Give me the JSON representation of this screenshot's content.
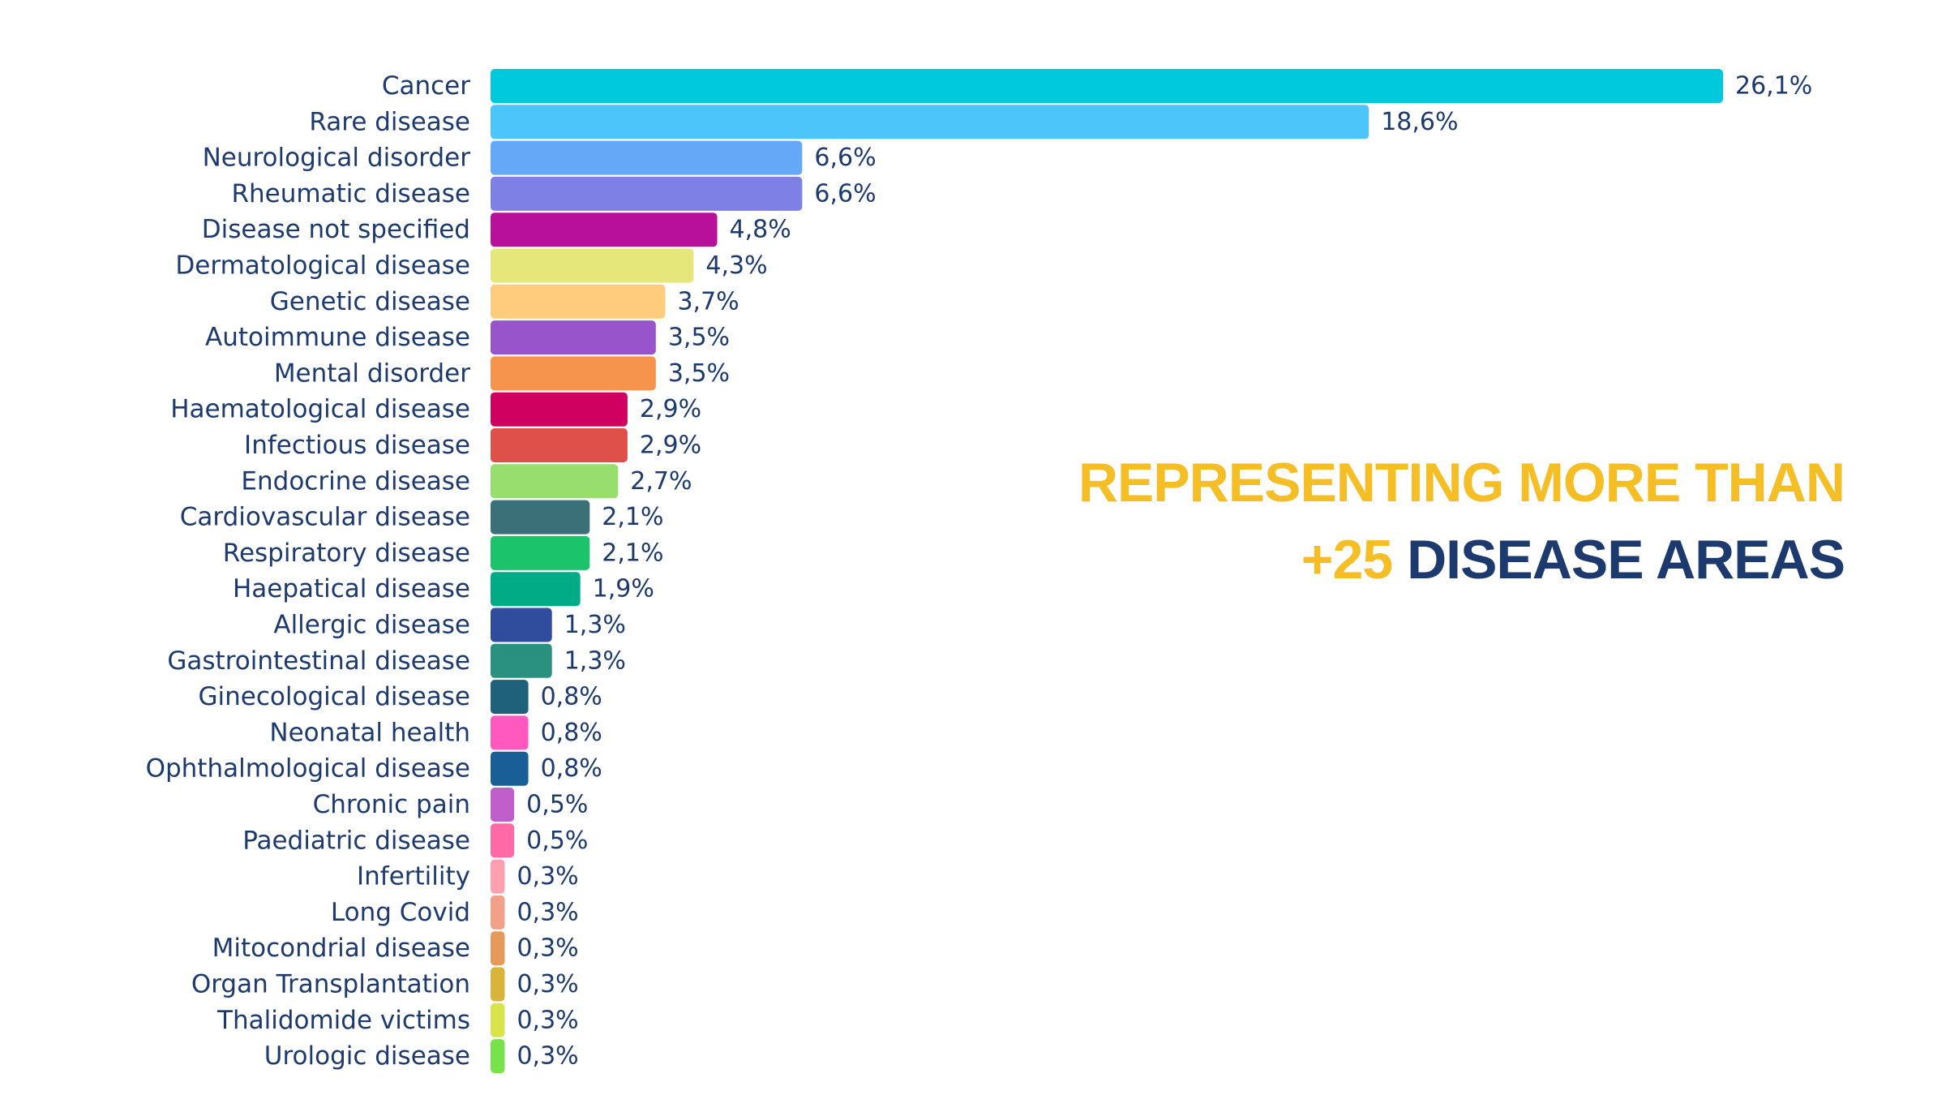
{
  "chart_data": {
    "type": "bar",
    "orientation": "horizontal",
    "categories": [
      "Cancer",
      "Rare disease",
      "Neurological disorder",
      "Rheumatic disease",
      "Disease not specified",
      "Dermatological disease",
      "Genetic disease",
      "Autoimmune disease",
      "Mental disorder",
      "Haematological disease",
      "Infectious disease",
      "Endocrine disease",
      "Cardiovascular disease",
      "Respiratory disease",
      "Haepatical disease",
      "Allergic disease",
      "Gastrointestinal disease",
      "Ginecological disease",
      "Neonatal health",
      "Ophthalmological disease",
      "Chronic pain",
      "Paediatric disease",
      "Infertility",
      "Long Covid",
      "Mitocondrial disease",
      "Organ Transplantation",
      "Thalidomide victims",
      "Urologic disease"
    ],
    "values": [
      26.1,
      18.6,
      6.6,
      6.6,
      4.8,
      4.3,
      3.7,
      3.5,
      3.5,
      2.9,
      2.9,
      2.7,
      2.1,
      2.1,
      1.9,
      1.3,
      1.3,
      0.8,
      0.8,
      0.8,
      0.5,
      0.5,
      0.3,
      0.3,
      0.3,
      0.3,
      0.3,
      0.3
    ],
    "value_labels": [
      "26,1%",
      "18,6%",
      "6,6%",
      "6,6%",
      "4,8%",
      "4,3%",
      "3,7%",
      "3,5%",
      "3,5%",
      "2,9%",
      "2,9%",
      "2,7%",
      "2,1%",
      "2,1%",
      "1,9%",
      "1,3%",
      "1,3%",
      "0,8%",
      "0,8%",
      "0,8%",
      "0,5%",
      "0,5%",
      "0,3%",
      "0,3%",
      "0,3%",
      "0,3%",
      "0,3%",
      "0,3%"
    ],
    "colors": [
      "#00c9dd",
      "#4cc5fa",
      "#66a8f8",
      "#7e80e6",
      "#b8109b",
      "#e5e77a",
      "#ffcb7c",
      "#9854cb",
      "#f6944e",
      "#d00060",
      "#e0504a",
      "#98de6e",
      "#3b7079",
      "#1bc36a",
      "#00ab85",
      "#2f4d9c",
      "#2a9080",
      "#1f607a",
      "#ff59c0",
      "#1a5e97",
      "#c05fcc",
      "#ff6aa6",
      "#ffa0b0",
      "#f2a08a",
      "#e59a5c",
      "#d9b43a",
      "#d9e34c",
      "#76e34a"
    ],
    "xlim": [
      0,
      26.1
    ],
    "grid": false,
    "legend": "none"
  },
  "headline": {
    "line1": "REPRESENTING MORE THAN",
    "count": "+25",
    "line2_rest": "DISEASE AREAS"
  }
}
